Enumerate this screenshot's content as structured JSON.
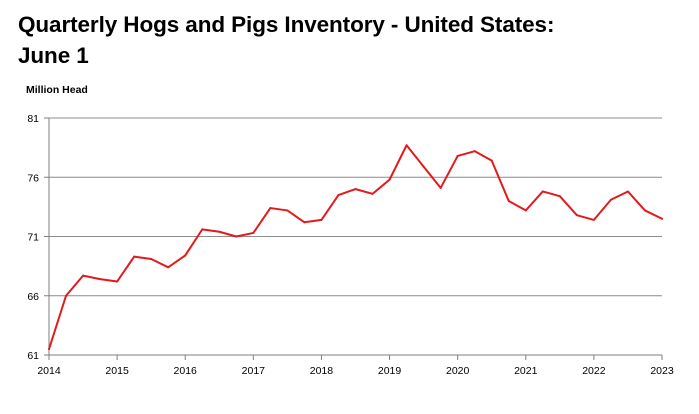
{
  "title": "Quarterly Hogs and Pigs Inventory - United States:\nJune 1",
  "chart_data": {
    "type": "line",
    "title": "Quarterly Hogs and Pigs Inventory - United States: June 1",
    "xlabel": "",
    "ylabel": "Million Head",
    "ylim": [
      61,
      81
    ],
    "yticks": [
      61,
      66,
      71,
      76,
      81
    ],
    "xlim": [
      2014,
      2023
    ],
    "xticks": [
      "2014",
      "2015",
      "2016",
      "2017",
      "2018",
      "2019",
      "2020",
      "2021",
      "2022",
      "2023"
    ],
    "grid": true,
    "series": [
      {
        "color": "#e31a1c",
        "x": [
          2014.0,
          2014.25,
          2014.5,
          2014.75,
          2015.0,
          2015.25,
          2015.5,
          2015.75,
          2016.0,
          2016.25,
          2016.5,
          2016.75,
          2017.0,
          2017.25,
          2017.5,
          2017.75,
          2018.0,
          2018.25,
          2018.5,
          2018.75,
          2019.0,
          2019.25,
          2019.5,
          2019.75,
          2020.0,
          2020.25,
          2020.5,
          2020.75,
          2021.0,
          2021.25,
          2021.5,
          2021.75,
          2022.0,
          2022.25,
          2022.5,
          2022.75,
          2023.0
        ],
        "values": [
          61.5,
          66.0,
          67.7,
          67.4,
          67.2,
          69.3,
          69.1,
          68.4,
          69.4,
          71.6,
          71.4,
          71.0,
          71.3,
          73.4,
          73.2,
          72.2,
          72.4,
          74.5,
          75.0,
          74.6,
          75.8,
          78.7,
          76.9,
          75.1,
          77.8,
          78.2,
          77.4,
          74.0,
          73.2,
          74.8,
          74.4,
          72.8,
          72.4,
          74.1,
          74.8,
          73.2,
          72.5
        ]
      }
    ]
  }
}
